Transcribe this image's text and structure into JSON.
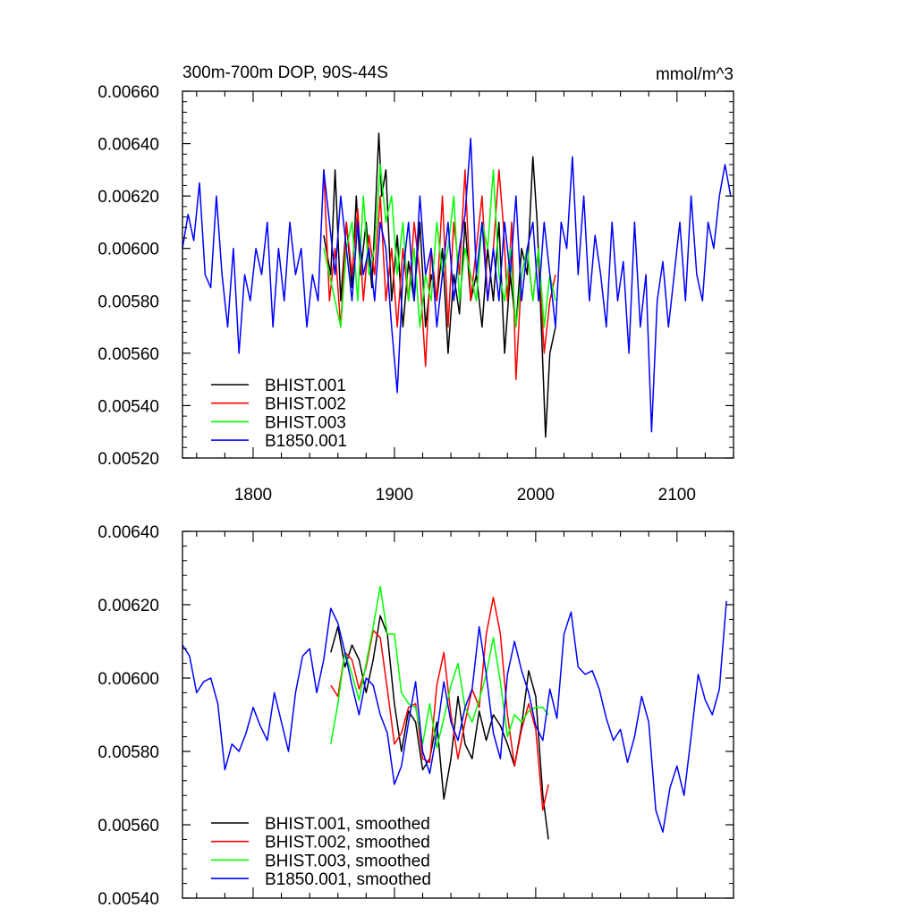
{
  "chart_data": [
    {
      "type": "line",
      "title": "300m-700m DOP, 90S-44S",
      "units": "mmol/m^3",
      "xlim": [
        1750,
        2140
      ],
      "ylim": [
        0.0052,
        0.0066
      ],
      "x_ticks": [
        1800,
        1900,
        2000,
        2100
      ],
      "x_tick_labels": [
        "1800",
        "1900",
        "2000",
        "2100"
      ],
      "y_ticks": [
        0.0052,
        0.0054,
        0.0056,
        0.0058,
        0.006,
        0.0062,
        0.0064,
        0.0066
      ],
      "y_tick_labels": [
        "0.00520",
        "0.00540",
        "0.00560",
        "0.00580",
        "0.00600",
        "0.00620",
        "0.00640",
        "0.00660"
      ],
      "legend_position": "bottom-left",
      "series": [
        {
          "name": "BHIST.001",
          "color": "#000000",
          "x": [
            1850,
            1855,
            1858,
            1862,
            1866,
            1870,
            1873,
            1876,
            1880,
            1884,
            1887,
            1889,
            1891,
            1894,
            1898,
            1902,
            1906,
            1910,
            1914,
            1918,
            1922,
            1926,
            1930,
            1934,
            1938,
            1942,
            1946,
            1950,
            1954,
            1958,
            1962,
            1966,
            1970,
            1974,
            1978,
            1982,
            1986,
            1990,
            1994,
            1998,
            2001,
            2004,
            2007,
            2010,
            2014
          ],
          "y": [
            0.00605,
            0.0059,
            0.0063,
            0.0058,
            0.0061,
            0.00585,
            0.0062,
            0.0059,
            0.0061,
            0.00585,
            0.0062,
            0.00644,
            0.0062,
            0.0063,
            0.0058,
            0.00605,
            0.0057,
            0.00595,
            0.0058,
            0.0061,
            0.0057,
            0.0059,
            0.0058,
            0.006,
            0.0056,
            0.0059,
            0.00575,
            0.0061,
            0.0058,
            0.0059,
            0.0057,
            0.006,
            0.0058,
            0.0061,
            0.0056,
            0.0059,
            0.0057,
            0.006,
            0.0059,
            0.00635,
            0.0061,
            0.0057,
            0.00528,
            0.0056,
            0.0057
          ]
        },
        {
          "name": "BHIST.002",
          "color": "#ff0000",
          "x": [
            1850,
            1854,
            1858,
            1862,
            1866,
            1870,
            1874,
            1878,
            1882,
            1886,
            1890,
            1894,
            1898,
            1902,
            1906,
            1910,
            1914,
            1918,
            1922,
            1926,
            1930,
            1934,
            1938,
            1942,
            1946,
            1950,
            1954,
            1958,
            1962,
            1966,
            1970,
            1974,
            1977,
            1980,
            1983,
            1986,
            1990,
            1994,
            1998,
            2002,
            2006,
            2010,
            2014
          ],
          "y": [
            0.0063,
            0.0058,
            0.006,
            0.0057,
            0.0061,
            0.0059,
            0.00615,
            0.0058,
            0.00605,
            0.0059,
            0.0062,
            0.0058,
            0.006,
            0.0057,
            0.006,
            0.0058,
            0.0061,
            0.0059,
            0.00555,
            0.006,
            0.0058,
            0.0062,
            0.0057,
            0.0061,
            0.0059,
            0.0063,
            0.0058,
            0.006,
            0.0062,
            0.0058,
            0.006,
            0.0063,
            0.0061,
            0.0058,
            0.0061,
            0.0055,
            0.0059,
            0.006,
            0.0058,
            0.006,
            0.0056,
            0.0058,
            0.0059
          ]
        },
        {
          "name": "BHIST.003",
          "color": "#00ff00",
          "x": [
            1850,
            1854,
            1858,
            1862,
            1866,
            1870,
            1874,
            1878,
            1882,
            1886,
            1890,
            1894,
            1898,
            1902,
            1906,
            1910,
            1914,
            1918,
            1922,
            1926,
            1930,
            1934,
            1938,
            1942,
            1946,
            1950,
            1954,
            1958,
            1962,
            1966,
            1970,
            1974,
            1978,
            1982,
            1986,
            1990,
            1994,
            1998,
            2002,
            2006,
            2010,
            2014
          ],
          "y": [
            0.006,
            0.0059,
            0.0058,
            0.0057,
            0.006,
            0.0061,
            0.0058,
            0.0062,
            0.0059,
            0.006,
            0.00632,
            0.0061,
            0.0062,
            0.0059,
            0.0061,
            0.0058,
            0.006,
            0.0057,
            0.0059,
            0.0058,
            0.0061,
            0.0059,
            0.006,
            0.0062,
            0.0058,
            0.006,
            0.0059,
            0.0058,
            0.0061,
            0.006,
            0.0063,
            0.0059,
            0.0058,
            0.006,
            0.0057,
            0.0059,
            0.006,
            0.0058,
            0.006,
            0.0057,
            0.0059,
            0.0058
          ]
        },
        {
          "name": "B1850.001",
          "color": "#0000ff",
          "x": [
            1750,
            1754,
            1758,
            1762,
            1766,
            1770,
            1774,
            1778,
            1782,
            1786,
            1790,
            1794,
            1798,
            1802,
            1806,
            1810,
            1814,
            1818,
            1822,
            1826,
            1830,
            1834,
            1838,
            1842,
            1846,
            1850,
            1854,
            1858,
            1862,
            1866,
            1870,
            1874,
            1878,
            1882,
            1886,
            1890,
            1894,
            1898,
            1902,
            1906,
            1910,
            1914,
            1918,
            1922,
            1926,
            1930,
            1934,
            1938,
            1942,
            1946,
            1950,
            1954,
            1958,
            1962,
            1966,
            1970,
            1974,
            1978,
            1982,
            1986,
            1990,
            1994,
            1998,
            2002,
            2006,
            2010,
            2014,
            2018,
            2022,
            2026,
            2030,
            2034,
            2038,
            2042,
            2046,
            2050,
            2054,
            2058,
            2062,
            2066,
            2070,
            2074,
            2078,
            2082,
            2086,
            2090,
            2094,
            2098,
            2102,
            2106,
            2110,
            2114,
            2118,
            2122,
            2126,
            2130,
            2134,
            2138
          ],
          "y": [
            0.006,
            0.00613,
            0.00603,
            0.00625,
            0.0059,
            0.00585,
            0.0062,
            0.0059,
            0.0057,
            0.006,
            0.0056,
            0.0059,
            0.0058,
            0.006,
            0.0059,
            0.0061,
            0.0057,
            0.006,
            0.0058,
            0.0061,
            0.0059,
            0.006,
            0.0057,
            0.0059,
            0.0058,
            0.0063,
            0.0061,
            0.0059,
            0.0062,
            0.006,
            0.0058,
            0.0061,
            0.0059,
            0.006,
            0.0058,
            0.0061,
            0.006,
            0.0057,
            0.00545,
            0.0059,
            0.0061,
            0.0058,
            0.0062,
            0.0059,
            0.006,
            0.0057,
            0.0059,
            0.0061,
            0.0058,
            0.006,
            0.00613,
            0.00642,
            0.0059,
            0.0061,
            0.0058,
            0.006,
            0.0058,
            0.0061,
            0.0059,
            0.0062,
            0.0058,
            0.006,
            0.0061,
            0.0058,
            0.0061,
            0.0059,
            0.0057,
            0.0061,
            0.006,
            0.00635,
            0.0059,
            0.0062,
            0.0058,
            0.00605,
            0.0059,
            0.0057,
            0.0061,
            0.0058,
            0.00595,
            0.0056,
            0.0061,
            0.0057,
            0.0059,
            0.0053,
            0.0058,
            0.00595,
            0.0057,
            0.0059,
            0.0061,
            0.0058,
            0.0062,
            0.0059,
            0.0058,
            0.0061,
            0.006,
            0.0062,
            0.00632,
            0.0062
          ]
        }
      ]
    },
    {
      "type": "line",
      "xlim": [
        1750,
        2140
      ],
      "ylim": [
        0.0054,
        0.0064
      ],
      "y_ticks": [
        0.0054,
        0.0056,
        0.0058,
        0.006,
        0.0062,
        0.0064
      ],
      "y_tick_labels": [
        "0.00540",
        "0.00560",
        "0.00580",
        "0.00600",
        "0.00620",
        "0.00640"
      ],
      "legend_position": "bottom-left",
      "series": [
        {
          "name": "BHIST.001, smoothed",
          "color": "#000000",
          "x": [
            1855,
            1860,
            1865,
            1870,
            1875,
            1880,
            1885,
            1890,
            1895,
            1900,
            1905,
            1910,
            1915,
            1920,
            1925,
            1930,
            1935,
            1940,
            1945,
            1950,
            1955,
            1960,
            1965,
            1970,
            1975,
            1980,
            1985,
            1990,
            1995,
            2000,
            2005,
            2009
          ],
          "y": [
            0.00607,
            0.00614,
            0.00603,
            0.00609,
            0.00605,
            0.00596,
            0.00605,
            0.00617,
            0.00612,
            0.00593,
            0.0058,
            0.00591,
            0.00588,
            0.00575,
            0.00578,
            0.00588,
            0.00567,
            0.00578,
            0.00595,
            0.00582,
            0.00578,
            0.00591,
            0.00583,
            0.0059,
            0.00587,
            0.00582,
            0.00576,
            0.00587,
            0.00602,
            0.00595,
            0.00568,
            0.00556
          ]
        },
        {
          "name": "BHIST.002, smoothed",
          "color": "#ff0000",
          "x": [
            1855,
            1860,
            1865,
            1870,
            1875,
            1880,
            1885,
            1890,
            1895,
            1900,
            1905,
            1910,
            1915,
            1920,
            1925,
            1930,
            1935,
            1940,
            1945,
            1950,
            1955,
            1960,
            1965,
            1970,
            1975,
            1980,
            1985,
            1990,
            1995,
            2000,
            2005,
            2009
          ],
          "y": [
            0.00598,
            0.00595,
            0.00607,
            0.00605,
            0.00597,
            0.00603,
            0.00613,
            0.00611,
            0.00597,
            0.00582,
            0.00585,
            0.00592,
            0.00593,
            0.00578,
            0.00577,
            0.00598,
            0.00607,
            0.0059,
            0.00578,
            0.00588,
            0.00597,
            0.00592,
            0.00612,
            0.00622,
            0.00612,
            0.0059,
            0.00576,
            0.00586,
            0.00593,
            0.00586,
            0.00564,
            0.00571
          ]
        },
        {
          "name": "BHIST.003, smoothed",
          "color": "#00ff00",
          "x": [
            1855,
            1860,
            1865,
            1870,
            1875,
            1880,
            1885,
            1890,
            1895,
            1900,
            1905,
            1910,
            1915,
            1920,
            1925,
            1930,
            1935,
            1940,
            1945,
            1950,
            1955,
            1960,
            1965,
            1970,
            1975,
            1980,
            1985,
            1990,
            1995,
            2000,
            2005,
            2009
          ],
          "y": [
            0.00582,
            0.00593,
            0.00607,
            0.00601,
            0.00594,
            0.00604,
            0.00614,
            0.00625,
            0.00612,
            0.00612,
            0.00596,
            0.00593,
            0.00592,
            0.00582,
            0.00593,
            0.00581,
            0.00589,
            0.00598,
            0.00604,
            0.00592,
            0.00588,
            0.00594,
            0.00601,
            0.00611,
            0.00599,
            0.00584,
            0.0059,
            0.00588,
            0.00591,
            0.00592,
            0.00592,
            0.0059
          ]
        },
        {
          "name": "B1850.001, smoothed",
          "color": "#0000ff",
          "x": [
            1750,
            1755,
            1760,
            1765,
            1770,
            1775,
            1780,
            1785,
            1790,
            1795,
            1800,
            1805,
            1810,
            1815,
            1820,
            1825,
            1830,
            1835,
            1840,
            1845,
            1850,
            1855,
            1860,
            1865,
            1870,
            1875,
            1880,
            1885,
            1890,
            1895,
            1900,
            1905,
            1910,
            1915,
            1920,
            1925,
            1930,
            1935,
            1940,
            1945,
            1950,
            1955,
            1960,
            1965,
            1970,
            1975,
            1980,
            1985,
            1990,
            1995,
            2000,
            2005,
            2010,
            2015,
            2020,
            2025,
            2030,
            2035,
            2040,
            2045,
            2050,
            2055,
            2060,
            2065,
            2070,
            2075,
            2080,
            2085,
            2090,
            2095,
            2100,
            2105,
            2110,
            2115,
            2120,
            2125,
            2130,
            2135
          ],
          "y": [
            0.00609,
            0.00606,
            0.00596,
            0.00599,
            0.006,
            0.00593,
            0.00575,
            0.00582,
            0.0058,
            0.00585,
            0.00592,
            0.00587,
            0.00583,
            0.00596,
            0.00588,
            0.0058,
            0.00596,
            0.00606,
            0.00608,
            0.00596,
            0.00605,
            0.00619,
            0.00615,
            0.00607,
            0.00598,
            0.0059,
            0.006,
            0.00598,
            0.0059,
            0.00585,
            0.00571,
            0.00576,
            0.00588,
            0.00599,
            0.0058,
            0.00574,
            0.00585,
            0.00599,
            0.00588,
            0.00583,
            0.00592,
            0.00597,
            0.00614,
            0.00601,
            0.00585,
            0.00578,
            0.00601,
            0.0061,
            0.00602,
            0.00596,
            0.00587,
            0.00583,
            0.00597,
            0.00589,
            0.00612,
            0.00618,
            0.00603,
            0.00601,
            0.00602,
            0.00597,
            0.00589,
            0.00583,
            0.00586,
            0.00577,
            0.00584,
            0.00595,
            0.00588,
            0.00564,
            0.00558,
            0.0057,
            0.00576,
            0.00568,
            0.00584,
            0.00601,
            0.00594,
            0.0059,
            0.00597,
            0.00621
          ]
        }
      ]
    }
  ]
}
